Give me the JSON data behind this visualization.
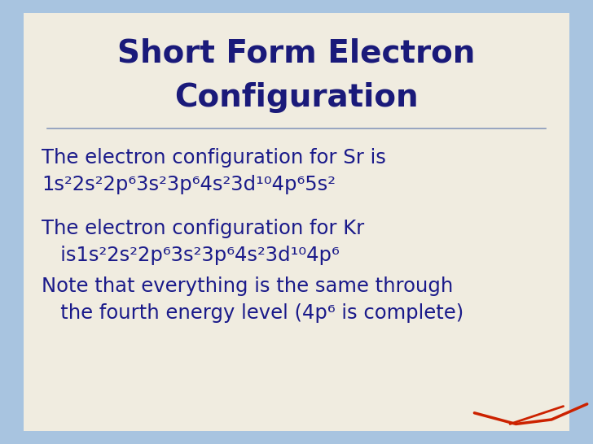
{
  "title_line1": "Short Form Electron",
  "title_line2": "Configuration",
  "title_color": "#1a1a7a",
  "title_fontsize": 28,
  "bg_outer_color": "#a8c4e0",
  "bg_inner_color": "#f0ece0",
  "text_color": "#1a1a8a",
  "body_fontsize": 17.5,
  "line1": "The electron configuration for Sr is",
  "line2": "1s²2s²2p⁶ 3s²3p⁶ 4s²3d¹⁰ 4p⁶ 5s²",
  "line4": "The electron configuration for Kr",
  "line5": "   is1s²2s²2p⁶ 3s²3p⁶ 4s²3d¹⁰ 4p⁶",
  "line6": "Note that everything is the same through",
  "line7": "   the fourth energy level (4p⁶ is complete)",
  "hline_color": "#8899bb",
  "red_color": "#cc2200"
}
